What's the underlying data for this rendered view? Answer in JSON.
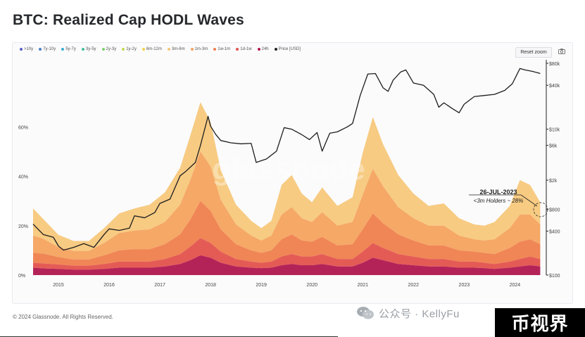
{
  "page": {
    "title": "BTC: Realized Cap HODL Waves"
  },
  "legend": [
    {
      "label": ">10y",
      "color": "#5b5fc7"
    },
    {
      "label": "7y-10y",
      "color": "#4a7fc9"
    },
    {
      "label": "5y-7y",
      "color": "#3aaed0"
    },
    {
      "label": "3y-5y",
      "color": "#43bf9d"
    },
    {
      "label": "2y-3y",
      "color": "#7ecf6b"
    },
    {
      "label": "1y-2y",
      "color": "#c6d84f"
    },
    {
      "label": "6m-12m",
      "color": "#f2d24e"
    },
    {
      "label": "3m-6m",
      "color": "#f7c87b"
    },
    {
      "label": "1m-3m",
      "color": "#f6a35f"
    },
    {
      "label": "1w-1m",
      "color": "#ef7f4c"
    },
    {
      "label": "1d-1w",
      "color": "#e3524d"
    },
    {
      "label": "24h",
      "color": "#b0174f"
    },
    {
      "label": "Price [USD]",
      "color": "#222222"
    }
  ],
  "controls": {
    "reset_zoom": "Reset zoom"
  },
  "watermark": "glassnode",
  "annotation": {
    "date": "26-JUL-2023",
    "text": "<3m Holders ~ 28%"
  },
  "footer": {
    "copyright": "© 2024 Glassnode. All Rights Reserved."
  },
  "overlay": {
    "wechat_text": "公众号 · KellyFu",
    "brand_box": "币视界"
  },
  "chart_data": {
    "type": "area",
    "title": "BTC: Realized Cap HODL Waves",
    "x_tick_labels": [
      "2015",
      "2016",
      "2017",
      "2018",
      "2019",
      "2020",
      "2021",
      "2022",
      "2023",
      "2024"
    ],
    "y_left_ticks": [
      "0%",
      "20%",
      "40%",
      "60%"
    ],
    "y_right_ticks": [
      "$100",
      "$400",
      "$800",
      "$2k",
      "$6k",
      "$10k",
      "$40k",
      "$80k"
    ],
    "ylim_left": [
      0,
      0.88
    ],
    "ylim_right_log": [
      100,
      80000
    ],
    "x": [
      2014.5,
      2014.7,
      2015.0,
      2015.3,
      2015.6,
      2015.9,
      2016.2,
      2016.5,
      2016.8,
      2017.1,
      2017.4,
      2017.6,
      2017.8,
      2018.0,
      2018.2,
      2018.5,
      2018.8,
      2019.0,
      2019.2,
      2019.4,
      2019.6,
      2019.8,
      2020.0,
      2020.2,
      2020.5,
      2020.8,
      2021.0,
      2021.2,
      2021.4,
      2021.7,
      2022.0,
      2022.3,
      2022.6,
      2022.9,
      2023.2,
      2023.4,
      2023.6,
      2023.9,
      2024.1,
      2024.3,
      2024.5
    ],
    "series": [
      {
        "name": "24h",
        "values": [
          0.03,
          0.027,
          0.025,
          0.022,
          0.022,
          0.025,
          0.03,
          0.03,
          0.03,
          0.035,
          0.045,
          0.06,
          0.08,
          0.07,
          0.05,
          0.035,
          0.03,
          0.028,
          0.03,
          0.04,
          0.045,
          0.04,
          0.04,
          0.045,
          0.035,
          0.035,
          0.05,
          0.07,
          0.06,
          0.045,
          0.04,
          0.035,
          0.035,
          0.03,
          0.03,
          0.028,
          0.025,
          0.03,
          0.035,
          0.04,
          0.035
        ]
      },
      {
        "name": "1d-1w",
        "values": [
          0.02,
          0.02,
          0.018,
          0.016,
          0.016,
          0.02,
          0.025,
          0.025,
          0.025,
          0.03,
          0.04,
          0.055,
          0.07,
          0.06,
          0.045,
          0.03,
          0.025,
          0.022,
          0.025,
          0.035,
          0.04,
          0.035,
          0.035,
          0.04,
          0.03,
          0.03,
          0.045,
          0.06,
          0.05,
          0.04,
          0.035,
          0.03,
          0.03,
          0.025,
          0.025,
          0.022,
          0.02,
          0.025,
          0.03,
          0.035,
          0.03
        ]
      },
      {
        "name": "1w-1m",
        "values": [
          0.04,
          0.04,
          0.03,
          0.025,
          0.025,
          0.035,
          0.045,
          0.05,
          0.05,
          0.06,
          0.08,
          0.11,
          0.15,
          0.13,
          0.09,
          0.06,
          0.045,
          0.04,
          0.045,
          0.07,
          0.08,
          0.065,
          0.06,
          0.07,
          0.055,
          0.06,
          0.09,
          0.12,
          0.1,
          0.08,
          0.065,
          0.055,
          0.055,
          0.045,
          0.04,
          0.04,
          0.04,
          0.055,
          0.07,
          0.07,
          0.06
        ]
      },
      {
        "name": "1m-3m",
        "values": [
          0.07,
          0.06,
          0.04,
          0.035,
          0.035,
          0.05,
          0.07,
          0.075,
          0.08,
          0.09,
          0.12,
          0.16,
          0.2,
          0.18,
          0.12,
          0.08,
          0.06,
          0.05,
          0.06,
          0.1,
          0.11,
          0.09,
          0.08,
          0.1,
          0.08,
          0.09,
          0.14,
          0.18,
          0.15,
          0.11,
          0.09,
          0.08,
          0.08,
          0.06,
          0.05,
          0.05,
          0.06,
          0.08,
          0.11,
          0.1,
          0.08
        ]
      },
      {
        "name": "3m-6m",
        "values": [
          0.11,
          0.08,
          0.05,
          0.04,
          0.04,
          0.06,
          0.08,
          0.09,
          0.1,
          0.12,
          0.15,
          0.18,
          0.2,
          0.18,
          0.12,
          0.08,
          0.06,
          0.05,
          0.06,
          0.12,
          0.13,
          0.1,
          0.08,
          0.1,
          0.08,
          0.1,
          0.17,
          0.21,
          0.17,
          0.13,
          0.1,
          0.08,
          0.09,
          0.07,
          0.06,
          0.06,
          0.07,
          0.09,
          0.14,
          0.12,
          0.09
        ]
      }
    ],
    "price_x": [
      2014.5,
      2014.7,
      2014.9,
      2015.0,
      2015.1,
      2015.3,
      2015.5,
      2015.7,
      2015.9,
      2016.0,
      2016.2,
      2016.4,
      2016.5,
      2016.7,
      2016.9,
      2017.0,
      2017.2,
      2017.4,
      2017.5,
      2017.7,
      2017.8,
      2017.95,
      2018.0,
      2018.1,
      2018.2,
      2018.4,
      2018.6,
      2018.8,
      2018.9,
      2019.0,
      2019.1,
      2019.3,
      2019.45,
      2019.6,
      2019.8,
      2019.95,
      2020.1,
      2020.2,
      2020.35,
      2020.5,
      2020.7,
      2020.8,
      2020.95,
      2021.1,
      2021.25,
      2021.4,
      2021.5,
      2021.6,
      2021.75,
      2021.85,
      2022.0,
      2022.2,
      2022.4,
      2022.5,
      2022.6,
      2022.75,
      2022.9,
      2023.0,
      2023.2,
      2023.4,
      2023.6,
      2023.8,
      2023.95,
      2024.1,
      2024.2,
      2024.35,
      2024.5
    ],
    "price": [
      500,
      360,
      330,
      250,
      220,
      240,
      270,
      240,
      360,
      430,
      410,
      440,
      650,
      610,
      720,
      960,
      1100,
      2300,
      2600,
      3500,
      6000,
      15000,
      11000,
      8500,
      7000,
      6500,
      6300,
      6400,
      3500,
      3700,
      3900,
      5000,
      10500,
      10000,
      8400,
      7200,
      9000,
      5000,
      8800,
      9200,
      10800,
      12000,
      29000,
      57000,
      58000,
      37000,
      33000,
      47000,
      61000,
      65000,
      43000,
      40000,
      30000,
      20000,
      23000,
      19500,
      16800,
      22000,
      28000,
      29000,
      30000,
      34000,
      42000,
      68000,
      65000,
      62000,
      58000
    ]
  }
}
